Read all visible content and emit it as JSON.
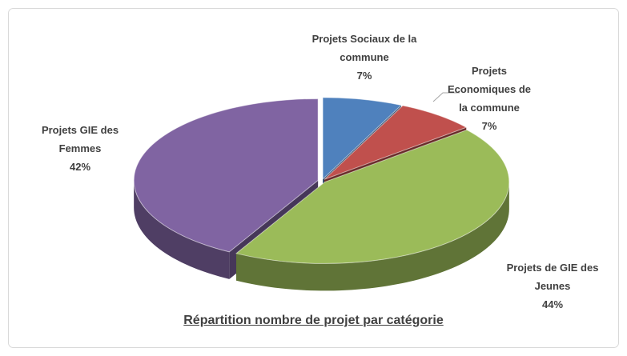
{
  "chart_data": {
    "type": "pie3d",
    "title": "Répartition nombre de projet par catégorie",
    "categories": [
      "Projets Sociaux de la commune",
      "Projets Economiques de la commune",
      "Projets de GIE des Jeunes",
      "Projets GIE des Femmes"
    ],
    "values": [
      7,
      7,
      44,
      42
    ],
    "value_labels": [
      "7%",
      "7%",
      "44%",
      "42%"
    ],
    "colors": [
      "#4f81bd",
      "#c0504d",
      "#9bbb59",
      "#8064a2"
    ]
  }
}
